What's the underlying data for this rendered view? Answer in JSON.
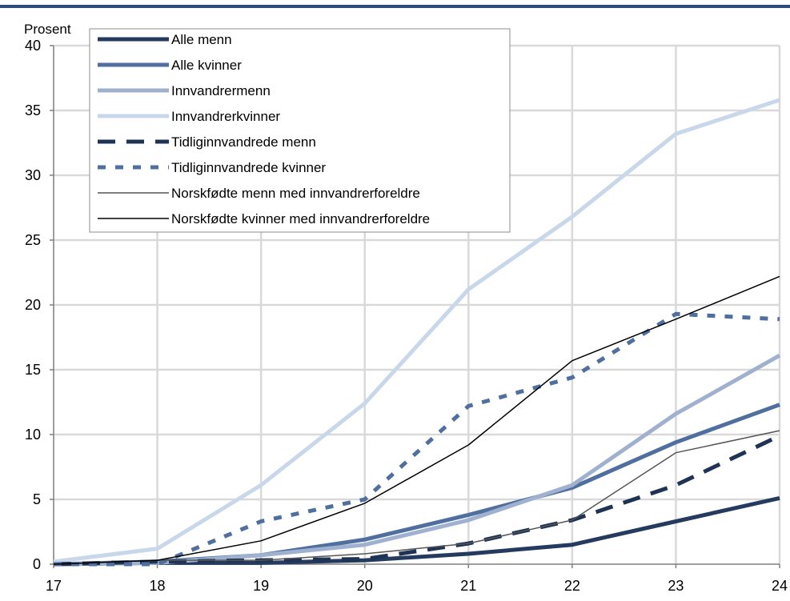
{
  "colors": {
    "header_rule": "#2e4a77",
    "grid": "#d9d9d9",
    "axis": "#7f7f7f",
    "background": "#ffffff"
  },
  "chart_data": {
    "type": "line",
    "title": "",
    "xlabel": "",
    "ylabel": "Prosent",
    "x": [
      17,
      18,
      19,
      20,
      21,
      22,
      23,
      24
    ],
    "xlim": [
      17,
      24
    ],
    "ylim": [
      0,
      40
    ],
    "yticks": [
      0,
      5,
      10,
      15,
      20,
      25,
      30,
      35,
      40
    ],
    "grid": true,
    "legend_position": "top-left",
    "series": [
      {
        "name": "Alle menn",
        "color": "#243a5e",
        "width": 5,
        "dash": "",
        "values": [
          0,
          0.1,
          0.1,
          0.3,
          0.8,
          1.5,
          3.3,
          5.1
        ]
      },
      {
        "name": "Alle kvinner",
        "color": "#4f6f9f",
        "width": 5,
        "dash": "",
        "values": [
          0,
          0.2,
          0.7,
          1.9,
          3.8,
          5.9,
          9.4,
          12.3
        ]
      },
      {
        "name": "Innvandrermenn",
        "color": "#9fb1cf",
        "width": 5,
        "dash": "",
        "values": [
          0,
          0.1,
          0.7,
          1.5,
          3.4,
          6.1,
          11.6,
          16.1
        ]
      },
      {
        "name": "Innvandrerkvinner",
        "color": "#c9d7ea",
        "width": 5,
        "dash": "",
        "values": [
          0.2,
          1.2,
          6.1,
          12.4,
          21.2,
          26.8,
          33.2,
          35.8
        ]
      },
      {
        "name": "Tidliginnvandrede menn",
        "color": "#1f3354",
        "width": 5,
        "dash": "22,14",
        "values": [
          0,
          0.2,
          0.3,
          0.4,
          1.6,
          3.4,
          6.1,
          9.9
        ]
      },
      {
        "name": "Tidliginnvandrede kvinner",
        "color": "#4f6f9f",
        "width": 5,
        "dash": "10,12",
        "values": [
          0,
          0,
          3.3,
          5.0,
          12.2,
          14.4,
          19.3,
          18.9
        ]
      },
      {
        "name": "Norskfødte menn med innvandrerforeldre",
        "color": "#555555",
        "width": 1.5,
        "dash": "",
        "values": [
          0,
          0.3,
          0.3,
          0.8,
          1.6,
          3.4,
          8.6,
          10.3
        ]
      },
      {
        "name": "Norskfødte kvinner med innvandrerforeldre",
        "color": "#000000",
        "width": 1.5,
        "dash": "",
        "values": [
          0,
          0.3,
          1.8,
          4.7,
          9.2,
          15.7,
          18.9,
          22.2
        ]
      }
    ]
  }
}
